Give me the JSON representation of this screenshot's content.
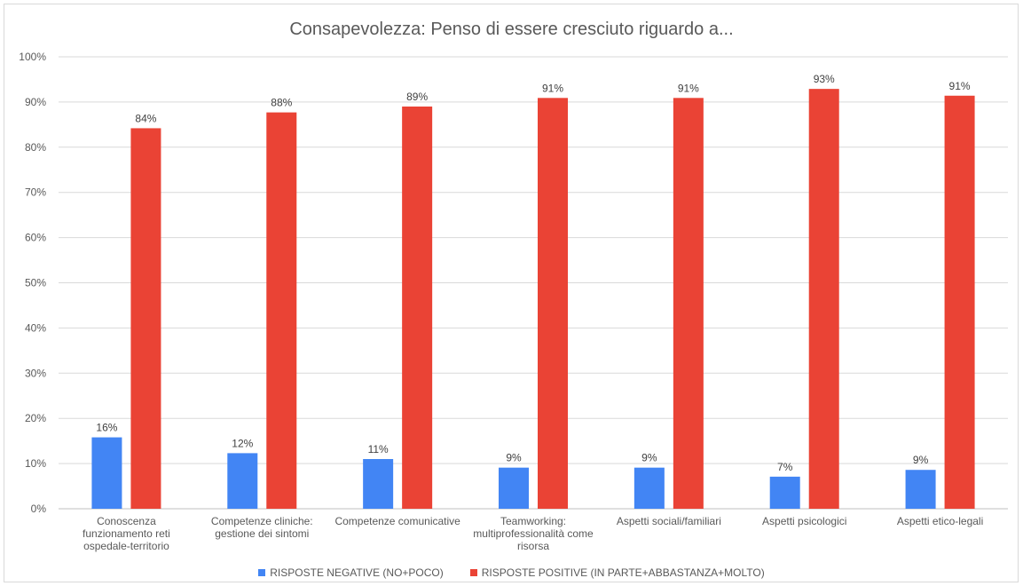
{
  "chart_data": {
    "type": "bar",
    "title": "Consapevolezza:  Penso di essere cresciuto riguardo a...",
    "categories": [
      [
        "Conoscenza",
        "funzionamento reti",
        "ospedale-territorio"
      ],
      [
        "Competenze cliniche:",
        "gestione dei sintomi"
      ],
      [
        "Competenze comunicative"
      ],
      [
        "Teamworking:",
        "multiprofessionalità come",
        "risorsa"
      ],
      [
        "Aspetti sociali/familiari"
      ],
      [
        "Aspetti psicologici"
      ],
      [
        "Aspetti etico-legali"
      ]
    ],
    "series": [
      {
        "name": "RISPOSTE NEGATIVE (NO+POCO)",
        "color": "#4285f4",
        "values": [
          15.8,
          12.3,
          11.0,
          9.1,
          9.1,
          7.1,
          8.6
        ],
        "labels": [
          "16%",
          "12%",
          "11%",
          "9%",
          "9%",
          "7%",
          "9%"
        ]
      },
      {
        "name": "RISPOSTE POSITIVE (IN PARTE+ABBASTANZA+MOLTO)",
        "color": "#ea4335",
        "values": [
          84.2,
          87.7,
          89.0,
          90.9,
          90.9,
          92.9,
          91.4
        ],
        "labels": [
          "84%",
          "88%",
          "89%",
          "91%",
          "91%",
          "93%",
          "91%"
        ]
      }
    ],
    "ylim": [
      0,
      100
    ],
    "yticks": [
      "0%",
      "10%",
      "20%",
      "30%",
      "40%",
      "50%",
      "60%",
      "70%",
      "80%",
      "90%",
      "100%"
    ],
    "grid": true,
    "legend_position": "bottom"
  }
}
